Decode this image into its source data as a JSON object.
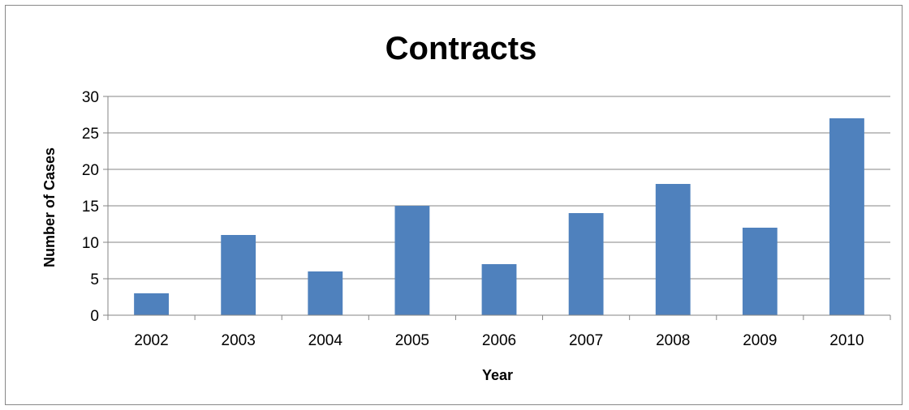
{
  "chart_data": {
    "type": "bar",
    "title": "Contracts",
    "xlabel": "Year",
    "ylabel": "Number of Cases",
    "categories": [
      "2002",
      "2003",
      "2004",
      "2005",
      "2006",
      "2007",
      "2008",
      "2009",
      "2010"
    ],
    "series": [
      {
        "values": [
          3,
          11,
          6,
          15,
          7,
          14,
          18,
          12,
          27
        ]
      }
    ],
    "ylim": [
      0,
      30
    ],
    "yticks": [
      0,
      5,
      10,
      15,
      20,
      25,
      30
    ],
    "grid": true,
    "legend": "none",
    "bar_color": "#4F81BD",
    "gridline_color": "#868686",
    "axis_color": "#868686"
  }
}
